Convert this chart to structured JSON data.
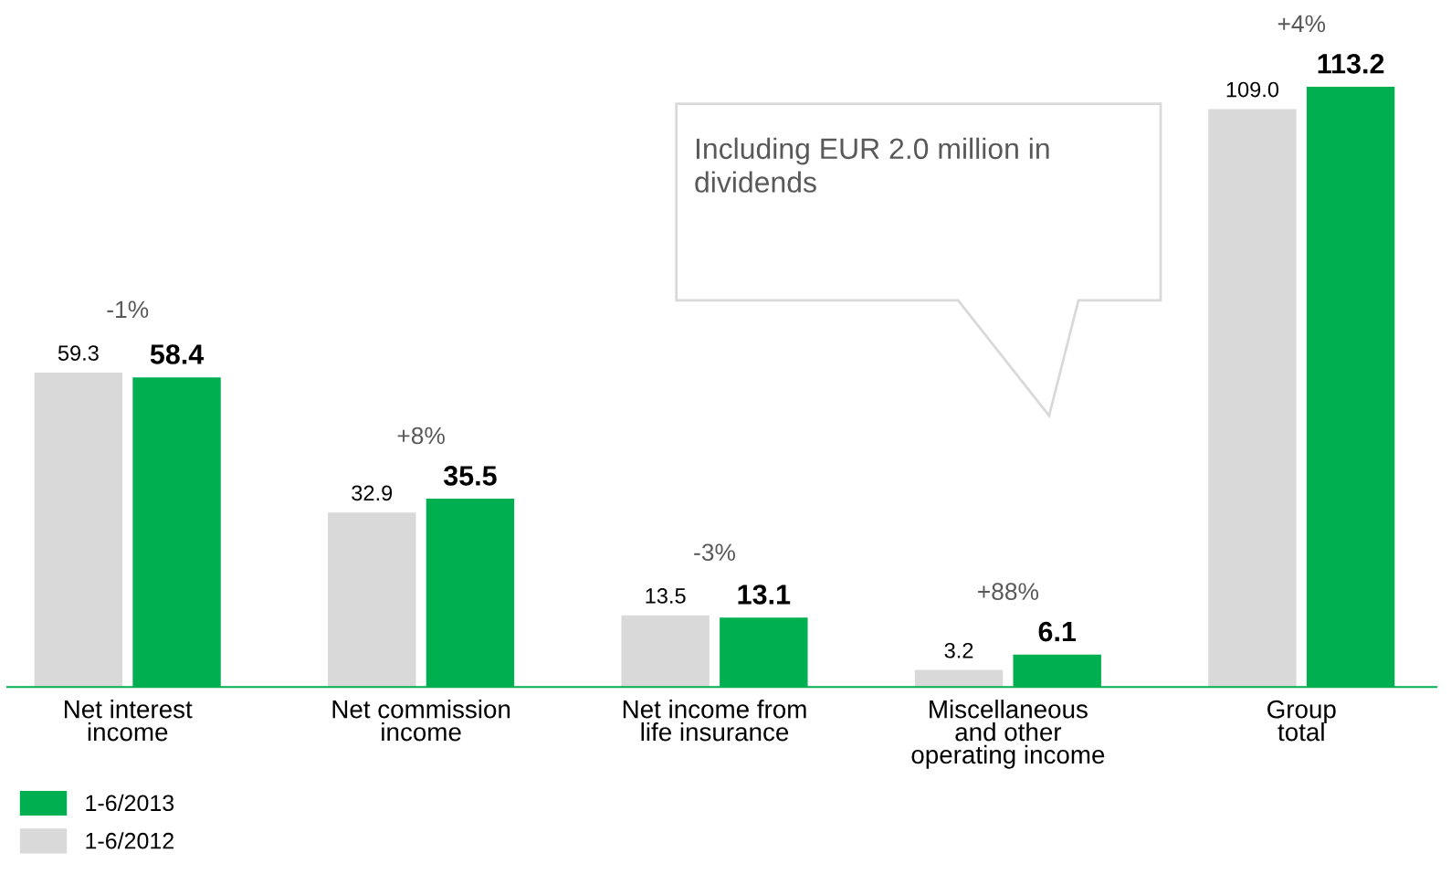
{
  "chart_data": {
    "type": "bar",
    "categories": [
      "Net interest\nincome",
      "Net commission\nincome",
      "Net income from\nlife insurance",
      "Miscellaneous\nand other\noperating income",
      "Group\ntotal"
    ],
    "series": [
      {
        "name": "1-6/2012",
        "color": "#d9d9d9",
        "values": [
          59.3,
          32.9,
          13.5,
          3.2,
          109.0
        ],
        "value_labels": [
          "59.3",
          "32.9",
          "13.5",
          "3.2",
          "109.0"
        ]
      },
      {
        "name": "1-6/2013",
        "color": "#00b050",
        "values": [
          58.4,
          35.5,
          13.1,
          6.1,
          113.2
        ],
        "value_labels": [
          "58.4",
          "35.5",
          "13.1",
          "6.1",
          "113.2"
        ]
      }
    ],
    "annotations": [
      "-1%",
      "+8%",
      "-3%",
      "+88%",
      "+4%",
      "Including EUR 2.0 million in\ndividends"
    ],
    "legend": "bottom left",
    "grid": false
  }
}
